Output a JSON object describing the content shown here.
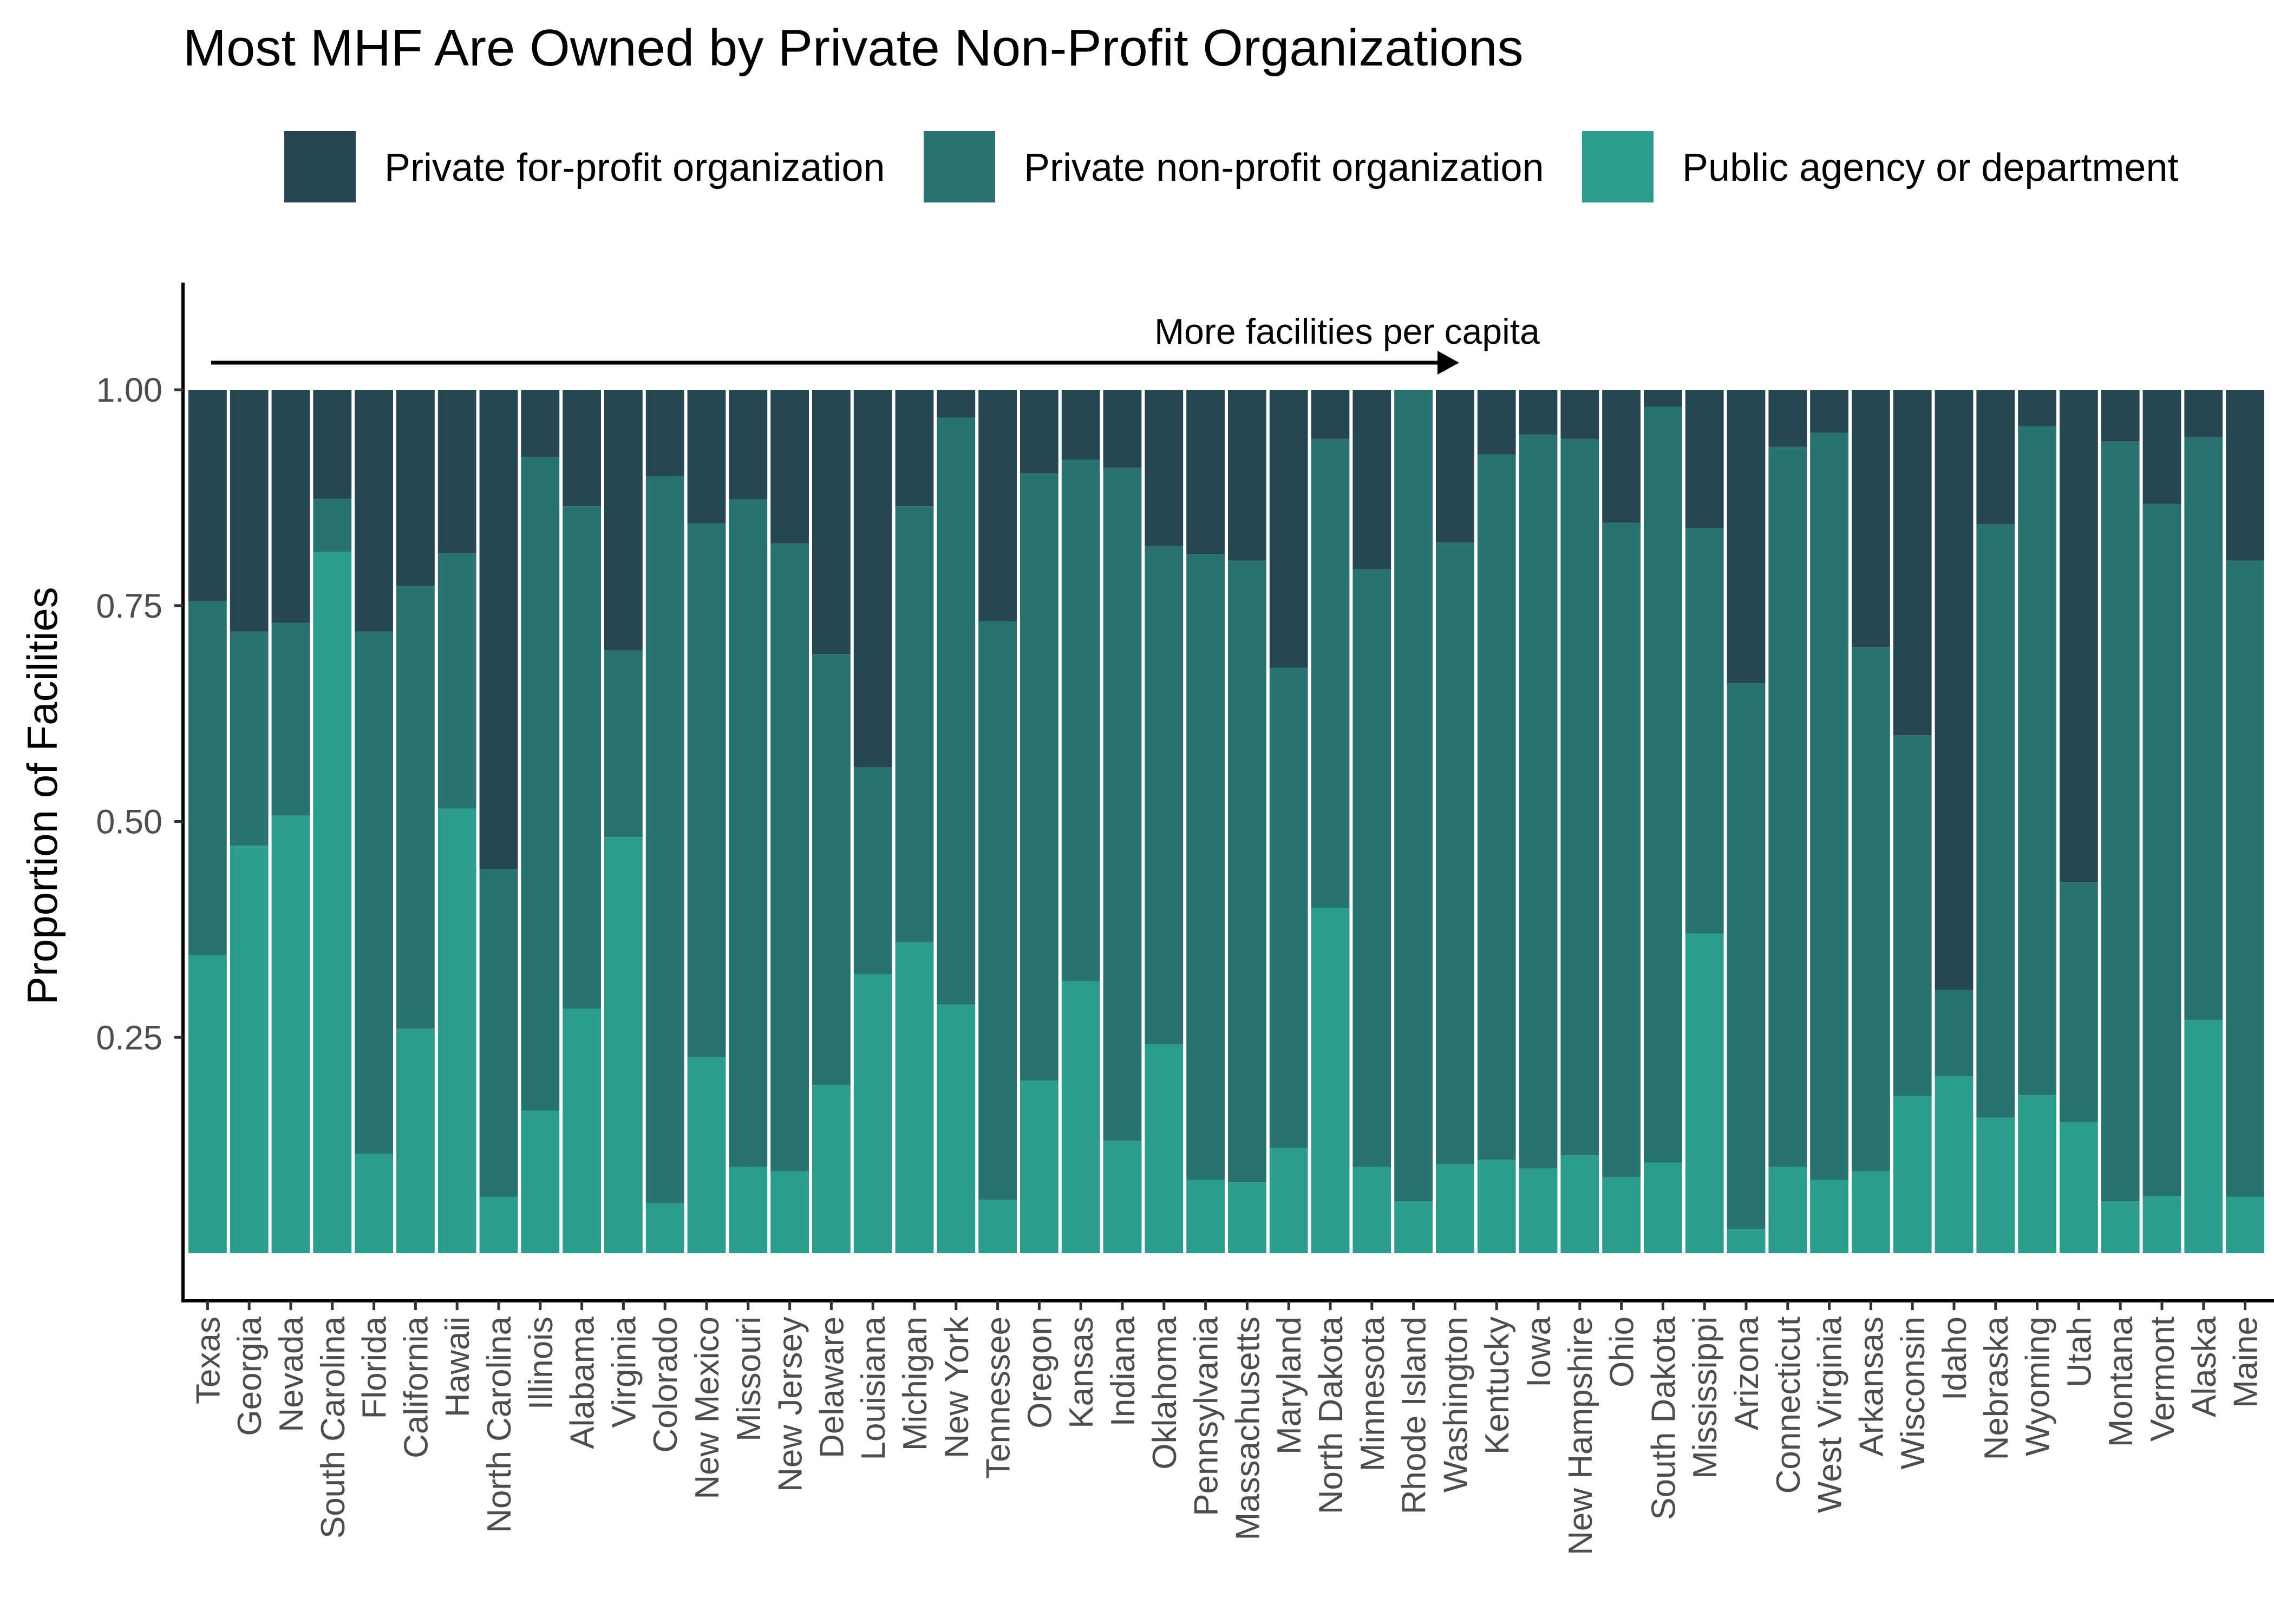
{
  "chart_data": {
    "type": "bar",
    "stacked": true,
    "title": "Most MHF Are Owned by Private Non-Profit Organizations",
    "xlabel": "",
    "ylabel": "Proportion of Facilities",
    "ylim": [
      -0.03,
      1.12
    ],
    "yticks": [
      0.25,
      0.5,
      0.75,
      1.0
    ],
    "ytick_labels": [
      "0.25",
      "0.50",
      "0.75",
      "1.00"
    ],
    "grid": false,
    "legend_position": "top",
    "annotation": "More facilities per capita",
    "categories": [
      "Texas",
      "Georgia",
      "Nevada",
      "South Carolina",
      "Florida",
      "California",
      "Hawaii",
      "North Carolina",
      "Illinois",
      "Alabama",
      "Virginia",
      "Colorado",
      "New Mexico",
      "Missouri",
      "New Jersey",
      "Delaware",
      "Louisiana",
      "Michigan",
      "New York",
      "Tennessee",
      "Oregon",
      "Kansas",
      "Indiana",
      "Oklahoma",
      "Pennsylvania",
      "Massachusetts",
      "Maryland",
      "North Dakota",
      "Minnesota",
      "Rhode Island",
      "Washington",
      "Kentucky",
      "Iowa",
      "New Hampshire",
      "Ohio",
      "South Dakota",
      "Mississippi",
      "Arizona",
      "Connecticut",
      "West Virginia",
      "Arkansas",
      "Wisconsin",
      "Idaho",
      "Nebraska",
      "Wyoming",
      "Utah",
      "Montana",
      "Vermont",
      "Alaska",
      "Maine"
    ],
    "series": [
      {
        "name": "Public agency or department",
        "color": "#2A9D8F",
        "values": [
          0.345,
          0.472,
          0.507,
          0.812,
          0.115,
          0.26,
          0.515,
          0.065,
          0.165,
          0.283,
          0.482,
          0.058,
          0.227,
          0.1,
          0.095,
          0.195,
          0.323,
          0.36,
          0.288,
          0.062,
          0.2,
          0.315,
          0.13,
          0.242,
          0.085,
          0.082,
          0.122,
          0.4,
          0.1,
          0.06,
          0.103,
          0.108,
          0.098,
          0.113,
          0.088,
          0.105,
          0.37,
          0.028,
          0.1,
          0.085,
          0.095,
          0.182,
          0.205,
          0.157,
          0.183,
          0.152,
          0.06,
          0.066,
          0.27,
          0.065
        ]
      },
      {
        "name": "Private non-profit organization",
        "color": "#287271",
        "values": [
          0.41,
          0.248,
          0.223,
          0.062,
          0.605,
          0.513,
          0.296,
          0.38,
          0.757,
          0.582,
          0.216,
          0.842,
          0.618,
          0.773,
          0.727,
          0.499,
          0.24,
          0.505,
          0.68,
          0.67,
          0.703,
          0.604,
          0.78,
          0.577,
          0.725,
          0.72,
          0.556,
          0.543,
          0.692,
          0.94,
          0.72,
          0.817,
          0.85,
          0.83,
          0.758,
          0.875,
          0.47,
          0.632,
          0.834,
          0.865,
          0.607,
          0.418,
          0.1,
          0.687,
          0.775,
          0.278,
          0.88,
          0.802,
          0.675,
          0.737
        ]
      },
      {
        "name": "Private for-profit organization",
        "color": "#264653",
        "values": [
          0.245,
          0.28,
          0.27,
          0.126,
          0.28,
          0.227,
          0.189,
          0.555,
          0.078,
          0.135,
          0.302,
          0.1,
          0.155,
          0.127,
          0.178,
          0.306,
          0.437,
          0.135,
          0.032,
          0.268,
          0.097,
          0.081,
          0.09,
          0.181,
          0.19,
          0.198,
          0.322,
          0.057,
          0.208,
          0.0,
          0.177,
          0.075,
          0.052,
          0.057,
          0.154,
          0.02,
          0.16,
          0.34,
          0.066,
          0.05,
          0.298,
          0.4,
          0.695,
          0.156,
          0.042,
          0.57,
          0.06,
          0.132,
          0.055,
          0.198
        ]
      }
    ]
  },
  "legend": {
    "items": [
      {
        "label": "Private for-profit organization",
        "color": "#264653"
      },
      {
        "label": "Private non-profit organization",
        "color": "#287271"
      },
      {
        "label": "Public agency or department",
        "color": "#2A9D8F"
      }
    ]
  }
}
